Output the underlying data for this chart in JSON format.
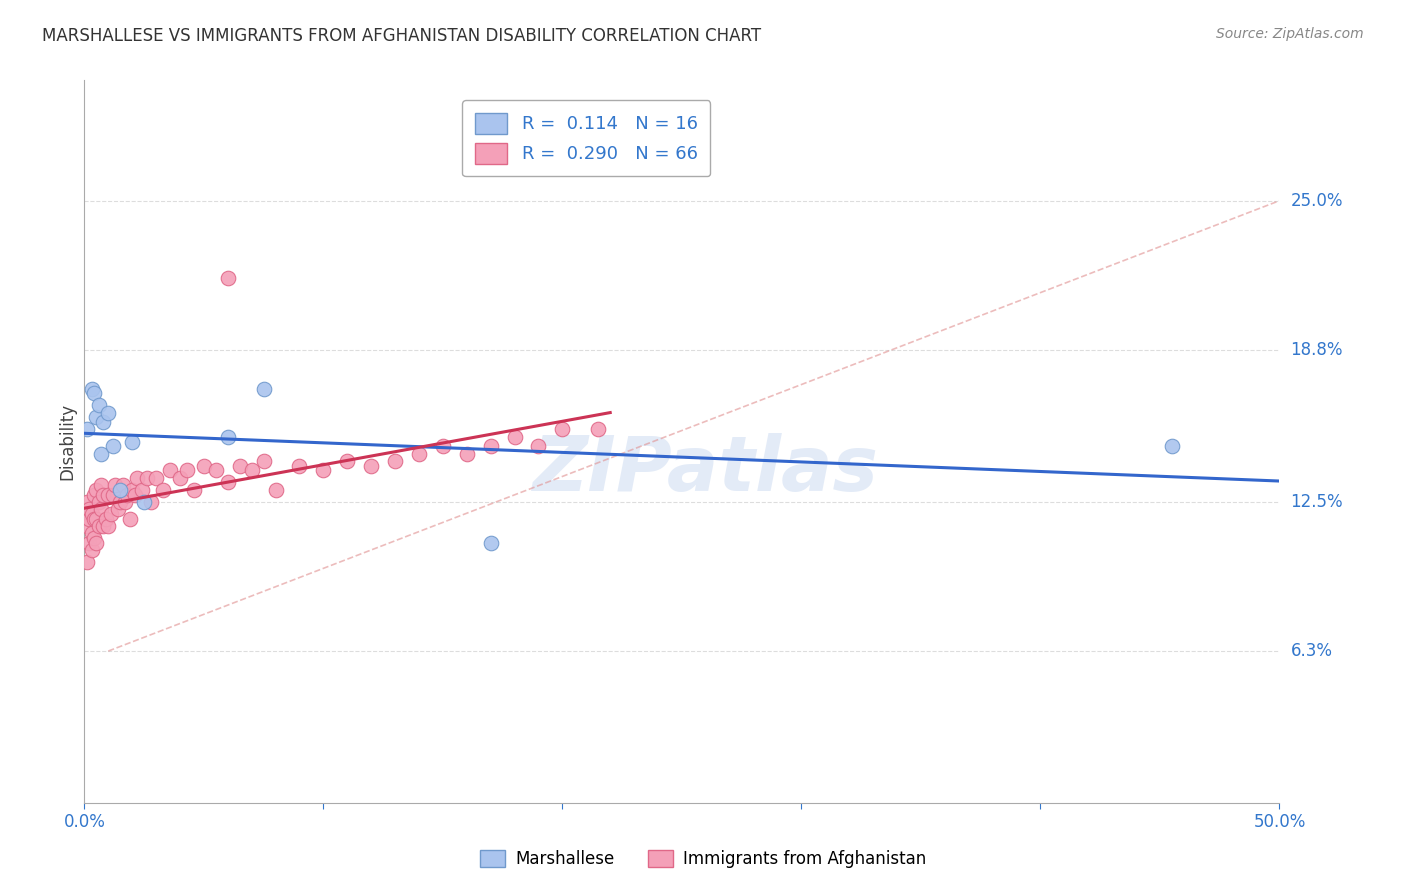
{
  "title": "MARSHALLESE VS IMMIGRANTS FROM AFGHANISTAN DISABILITY CORRELATION CHART",
  "source": "Source: ZipAtlas.com",
  "ylabel": "Disability",
  "watermark": "ZIPatlas",
  "xlim": [
    0.0,
    0.5
  ],
  "ylim": [
    0.0,
    0.3
  ],
  "ytick_values": [
    0.063,
    0.125,
    0.188,
    0.25
  ],
  "ytick_labels": [
    "6.3%",
    "12.5%",
    "18.8%",
    "25.0%"
  ],
  "grid_color": "#dddddd",
  "marshallese_color": "#aac4ee",
  "marshallese_edge": "#7099cc",
  "afghanistan_color": "#f4a0b8",
  "afghanistan_edge": "#e06888",
  "marshallese_R": "0.114",
  "marshallese_N": "16",
  "afghanistan_R": "0.290",
  "afghanistan_N": "66",
  "marshallese_line_color": "#3366cc",
  "afghanistan_line_color": "#cc3355",
  "diag_line_color": "#e09090",
  "marshallese_x": [
    0.001,
    0.003,
    0.004,
    0.005,
    0.006,
    0.007,
    0.008,
    0.01,
    0.012,
    0.015,
    0.02,
    0.025,
    0.06,
    0.075,
    0.17,
    0.455
  ],
  "marshallese_y": [
    0.155,
    0.172,
    0.17,
    0.16,
    0.165,
    0.145,
    0.158,
    0.162,
    0.148,
    0.13,
    0.15,
    0.125,
    0.152,
    0.172,
    0.108,
    0.148
  ],
  "afghanistan_x": [
    0.001,
    0.001,
    0.001,
    0.002,
    0.002,
    0.002,
    0.003,
    0.003,
    0.003,
    0.004,
    0.004,
    0.004,
    0.005,
    0.005,
    0.005,
    0.006,
    0.006,
    0.007,
    0.007,
    0.008,
    0.008,
    0.009,
    0.01,
    0.01,
    0.011,
    0.012,
    0.013,
    0.014,
    0.015,
    0.016,
    0.017,
    0.018,
    0.019,
    0.02,
    0.021,
    0.022,
    0.024,
    0.026,
    0.028,
    0.03,
    0.033,
    0.036,
    0.04,
    0.043,
    0.046,
    0.05,
    0.055,
    0.06,
    0.065,
    0.07,
    0.075,
    0.08,
    0.09,
    0.1,
    0.11,
    0.12,
    0.13,
    0.14,
    0.15,
    0.16,
    0.17,
    0.18,
    0.19,
    0.2,
    0.215,
    0.06
  ],
  "afghanistan_y": [
    0.1,
    0.115,
    0.125,
    0.108,
    0.118,
    0.122,
    0.105,
    0.112,
    0.12,
    0.11,
    0.118,
    0.128,
    0.108,
    0.118,
    0.13,
    0.115,
    0.125,
    0.122,
    0.132,
    0.115,
    0.128,
    0.118,
    0.115,
    0.128,
    0.12,
    0.128,
    0.132,
    0.122,
    0.125,
    0.132,
    0.125,
    0.128,
    0.118,
    0.13,
    0.128,
    0.135,
    0.13,
    0.135,
    0.125,
    0.135,
    0.13,
    0.138,
    0.135,
    0.138,
    0.13,
    0.14,
    0.138,
    0.133,
    0.14,
    0.138,
    0.142,
    0.13,
    0.14,
    0.138,
    0.142,
    0.14,
    0.142,
    0.145,
    0.148,
    0.145,
    0.148,
    0.152,
    0.148,
    0.155,
    0.155,
    0.218
  ]
}
